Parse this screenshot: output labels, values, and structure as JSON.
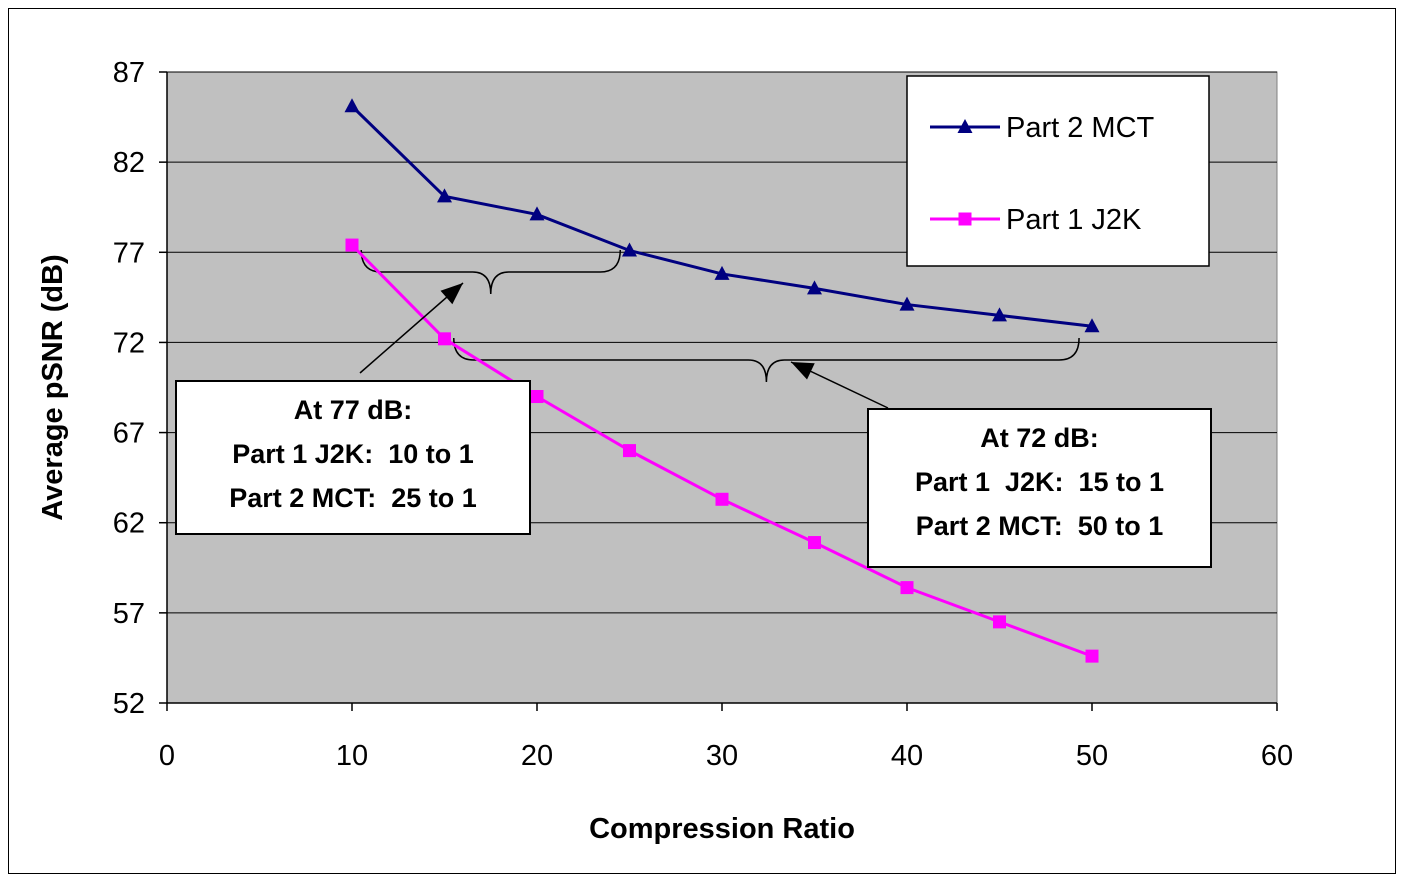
{
  "chart_data": {
    "type": "line",
    "xlabel": "Compression Ratio",
    "ylabel": "Average pSNR (dB)",
    "xlim": [
      0,
      60
    ],
    "ylim": [
      52,
      87
    ],
    "xticks": [
      0,
      10,
      20,
      30,
      40,
      50,
      60
    ],
    "yticks": [
      52,
      57,
      62,
      67,
      72,
      77,
      82,
      87
    ],
    "grid": "horizontal",
    "plot_background": "#c0c0c0",
    "legend_position": "top-right",
    "x": [
      10,
      15,
      20,
      25,
      30,
      35,
      40,
      45,
      50
    ],
    "series": [
      {
        "name": "Part 2 MCT",
        "color": "#000080",
        "marker": "triangle",
        "values": [
          85.1,
          80.1,
          79.1,
          77.1,
          75.8,
          75.0,
          74.1,
          73.5,
          72.9
        ]
      },
      {
        "name": "Part 1 J2K",
        "color": "#ff00ff",
        "marker": "square",
        "values": [
          77.4,
          72.2,
          69.0,
          66.0,
          63.3,
          60.9,
          58.4,
          56.5,
          54.6
        ]
      }
    ],
    "annotations": [
      {
        "lines": [
          "At 77 dB:",
          "Part 1 J2K:  10 to 1",
          "Part 2 MCT:  25 to 1"
        ]
      },
      {
        "lines": [
          "At 72 dB:",
          "Part 1  J2K:  15 to 1",
          "Part 2 MCT:  50 to 1"
        ]
      }
    ]
  }
}
